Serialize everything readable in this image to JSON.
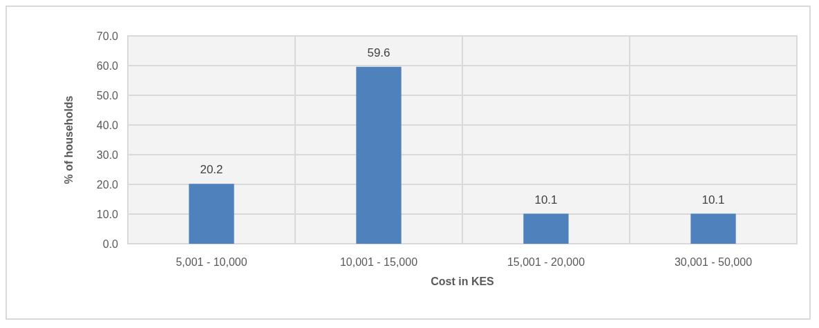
{
  "chart_data": {
    "type": "bar",
    "xlabel": "Cost in KES",
    "ylabel": "% of households",
    "categories": [
      "5,001 - 10,000",
      "10,001 - 15,000",
      "15,001 - 20,000",
      "30,001 - 50,000"
    ],
    "values": [
      20.2,
      59.6,
      10.1,
      10.1
    ],
    "color": "#4f81bd",
    "data_labels": true,
    "ylim": [
      0,
      70
    ],
    "yticks": [
      {
        "value": 0,
        "label": "0.0"
      },
      {
        "value": 10,
        "label": "10.0"
      },
      {
        "value": 20,
        "label": "20.0"
      },
      {
        "value": 30,
        "label": "30.0"
      },
      {
        "value": 40,
        "label": "40.0"
      },
      {
        "value": 50,
        "label": "50.0"
      },
      {
        "value": 60,
        "label": "60.0"
      },
      {
        "value": 70,
        "label": "70.0"
      }
    ],
    "grid": true
  }
}
